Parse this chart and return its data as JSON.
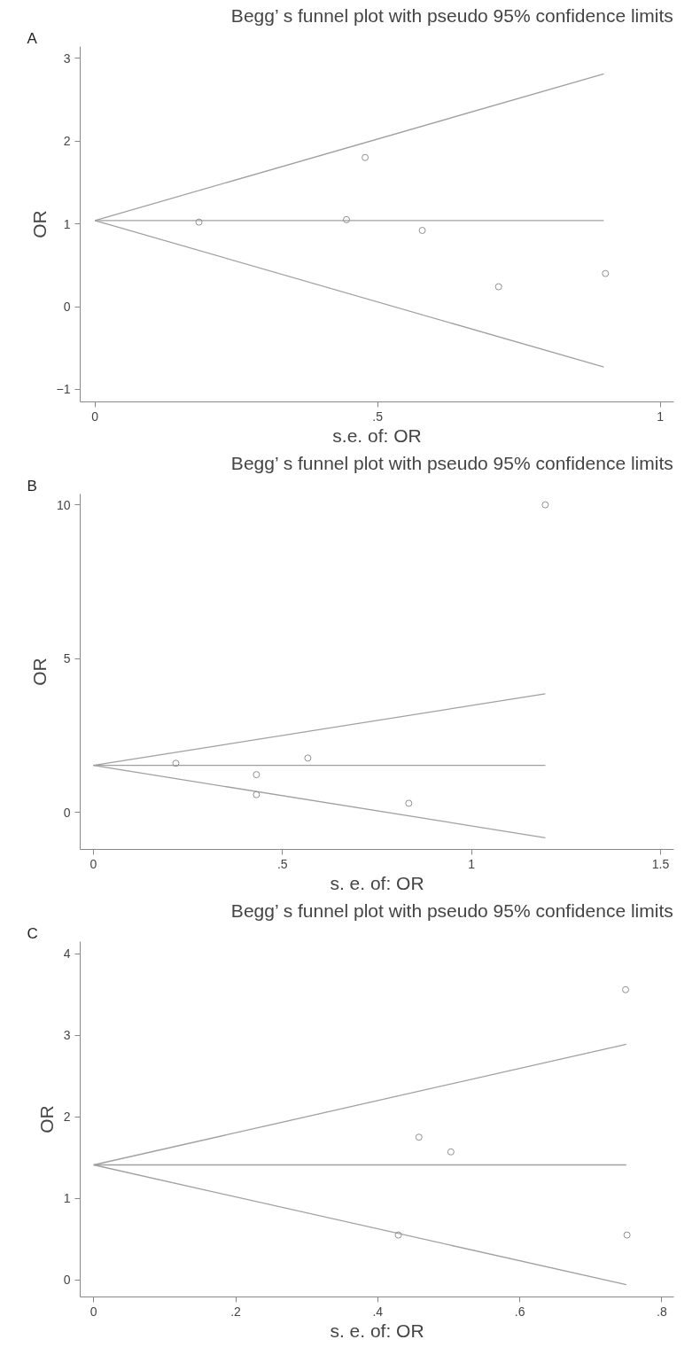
{
  "chart_data": [
    {
      "type": "scatter",
      "title": "Begg’ s funnel plot with pseudo 95% confidence limits",
      "xlabel": "s.e. of: OR",
      "ylabel": "OR",
      "annotations": [
        "A"
      ],
      "xlim": [
        -0.026,
        1.024
      ],
      "ylim": [
        -1.15,
        3.14
      ],
      "xticks": [
        0,
        {
          "value": 0.5,
          "label": ".5"
        },
        1
      ],
      "yticks": [
        -1,
        0,
        1,
        2,
        3
      ],
      "grid": false,
      "series": [
        {
          "type": "line",
          "color": "#a0a0a0",
          "x": [
            0,
            0.9
          ],
          "values": [
            1.04,
            2.81
          ],
          "line_style": "solid"
        },
        {
          "type": "line",
          "color": "#a0a0a0",
          "x": [
            0,
            0.9
          ],
          "values": [
            1.04,
            1.04
          ],
          "line_style": "solid"
        },
        {
          "type": "line",
          "color": "#a0a0a0",
          "x": [
            0,
            0.9
          ],
          "values": [
            1.04,
            -0.73
          ],
          "line_style": "solid"
        },
        {
          "type": "scatter",
          "color": "#909090",
          "marker": "circle",
          "x": [
            0.184,
            0.445,
            0.478,
            0.579,
            0.714,
            0.903
          ],
          "values": [
            1.02,
            1.05,
            1.8,
            0.92,
            0.24,
            0.4
          ]
        }
      ]
    },
    {
      "type": "scatter",
      "title": "Begg’ s funnel plot with pseudo 95% confidence limits",
      "xlabel": "s. e. of: OR",
      "ylabel": "OR",
      "annotations": [
        "B"
      ],
      "xlim": [
        -0.035,
        1.535
      ],
      "ylim": [
        -1.2,
        10.35
      ],
      "xticks": [
        0,
        {
          "value": 0.5,
          "label": ".5"
        },
        1,
        1.5
      ],
      "yticks": [
        0,
        5,
        10
      ],
      "grid": false,
      "series": [
        {
          "type": "line",
          "color": "#a0a0a0",
          "x": [
            0,
            1.195
          ],
          "values": [
            1.53,
            3.86
          ],
          "line_style": "solid"
        },
        {
          "type": "line",
          "color": "#a0a0a0",
          "x": [
            0,
            1.195
          ],
          "values": [
            1.53,
            1.53
          ],
          "line_style": "solid"
        },
        {
          "type": "line",
          "color": "#a0a0a0",
          "x": [
            0,
            1.195
          ],
          "values": [
            1.53,
            -0.82
          ],
          "line_style": "solid"
        },
        {
          "type": "scatter",
          "color": "#909090",
          "marker": "circle",
          "x": [
            0.218,
            0.431,
            0.431,
            0.567,
            0.834,
            1.195
          ],
          "values": [
            1.6,
            1.23,
            0.58,
            1.77,
            0.3,
            10.0
          ]
        }
      ]
    },
    {
      "type": "scatter",
      "title": "Begg’ s funnel plot with pseudo 95% confidence limits",
      "xlabel": "s. e. of: OR",
      "ylabel": "OR",
      "annotations": [
        "C"
      ],
      "xlim": [
        -0.019,
        0.817
      ],
      "ylim": [
        -0.21,
        4.15
      ],
      "xticks": [
        0,
        {
          "value": 0.2,
          "label": ".2"
        },
        {
          "value": 0.4,
          "label": ".4"
        },
        {
          "value": 0.6,
          "label": ".6"
        },
        {
          "value": 0.8,
          "label": ".8"
        }
      ],
      "yticks": [
        0,
        1,
        2,
        3,
        4
      ],
      "grid": false,
      "series": [
        {
          "type": "line",
          "color": "#a0a0a0",
          "x": [
            0,
            0.75
          ],
          "values": [
            1.41,
            2.89
          ],
          "line_style": "solid"
        },
        {
          "type": "line",
          "color": "#a0a0a0",
          "x": [
            0,
            0.75
          ],
          "values": [
            1.41,
            1.41
          ],
          "line_style": "solid"
        },
        {
          "type": "line",
          "color": "#a0a0a0",
          "x": [
            0,
            0.75
          ],
          "values": [
            1.41,
            -0.06
          ],
          "line_style": "solid"
        },
        {
          "type": "scatter",
          "color": "#909090",
          "marker": "circle",
          "x": [
            0.429,
            0.458,
            0.503,
            0.749,
            0.751
          ],
          "values": [
            0.55,
            1.75,
            1.57,
            3.56,
            0.55
          ]
        }
      ]
    }
  ]
}
